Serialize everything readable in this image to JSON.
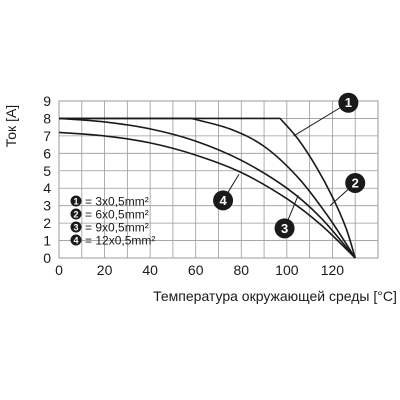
{
  "chart_data": {
    "type": "line",
    "xlabel": "Температура окружающей среды [°C]",
    "ylabel": "Ток [A]",
    "xlim": [
      0,
      140
    ],
    "ylim": [
      0,
      9
    ],
    "xticks": [
      0,
      20,
      40,
      60,
      80,
      100,
      120
    ],
    "yticks": [
      0,
      1,
      2,
      3,
      4,
      5,
      6,
      7,
      8,
      9
    ],
    "grid": true,
    "line_color": "#1a1a1a",
    "grid_color": "#9a9a9a",
    "series": [
      {
        "marker": "1",
        "x": [
          0,
          97,
          105,
          113,
          120,
          126,
          130
        ],
        "y": [
          8,
          8,
          6.8,
          5.2,
          3.5,
          1.7,
          0
        ]
      },
      {
        "marker": "2",
        "x": [
          0,
          58,
          75,
          90,
          105,
          118,
          130
        ],
        "y": [
          8,
          8,
          7.4,
          6.4,
          4.6,
          2.4,
          0
        ]
      },
      {
        "marker": "3",
        "x": [
          0,
          20,
          40,
          60,
          80,
          100,
          115,
          130
        ],
        "y": [
          8,
          7.8,
          7.4,
          6.7,
          5.6,
          4.0,
          2.3,
          0
        ]
      },
      {
        "marker": "4",
        "x": [
          0,
          20,
          40,
          60,
          80,
          100,
          115,
          130
        ],
        "y": [
          7.2,
          7.0,
          6.6,
          5.9,
          4.9,
          3.4,
          1.9,
          0
        ]
      }
    ],
    "legend": [
      {
        "marker": "1",
        "label": "= 3x0,5mm²"
      },
      {
        "marker": "2",
        "label": "= 6x0,5mm²"
      },
      {
        "marker": "3",
        "label": "= 9x0,5mm²"
      },
      {
        "marker": "4",
        "label": "= 12x0,5mm²"
      }
    ],
    "callouts": [
      {
        "marker": "1",
        "at": [
          103,
          7.0
        ],
        "label": [
          127,
          8.9
        ]
      },
      {
        "marker": "2",
        "at": [
          119,
          3.0
        ],
        "label": [
          130,
          4.3
        ]
      },
      {
        "marker": "3",
        "at": [
          105,
          3.6
        ],
        "label": [
          99,
          1.7
        ]
      },
      {
        "marker": "4",
        "at": [
          79,
          4.8
        ],
        "label": [
          72,
          3.3
        ]
      }
    ]
  }
}
